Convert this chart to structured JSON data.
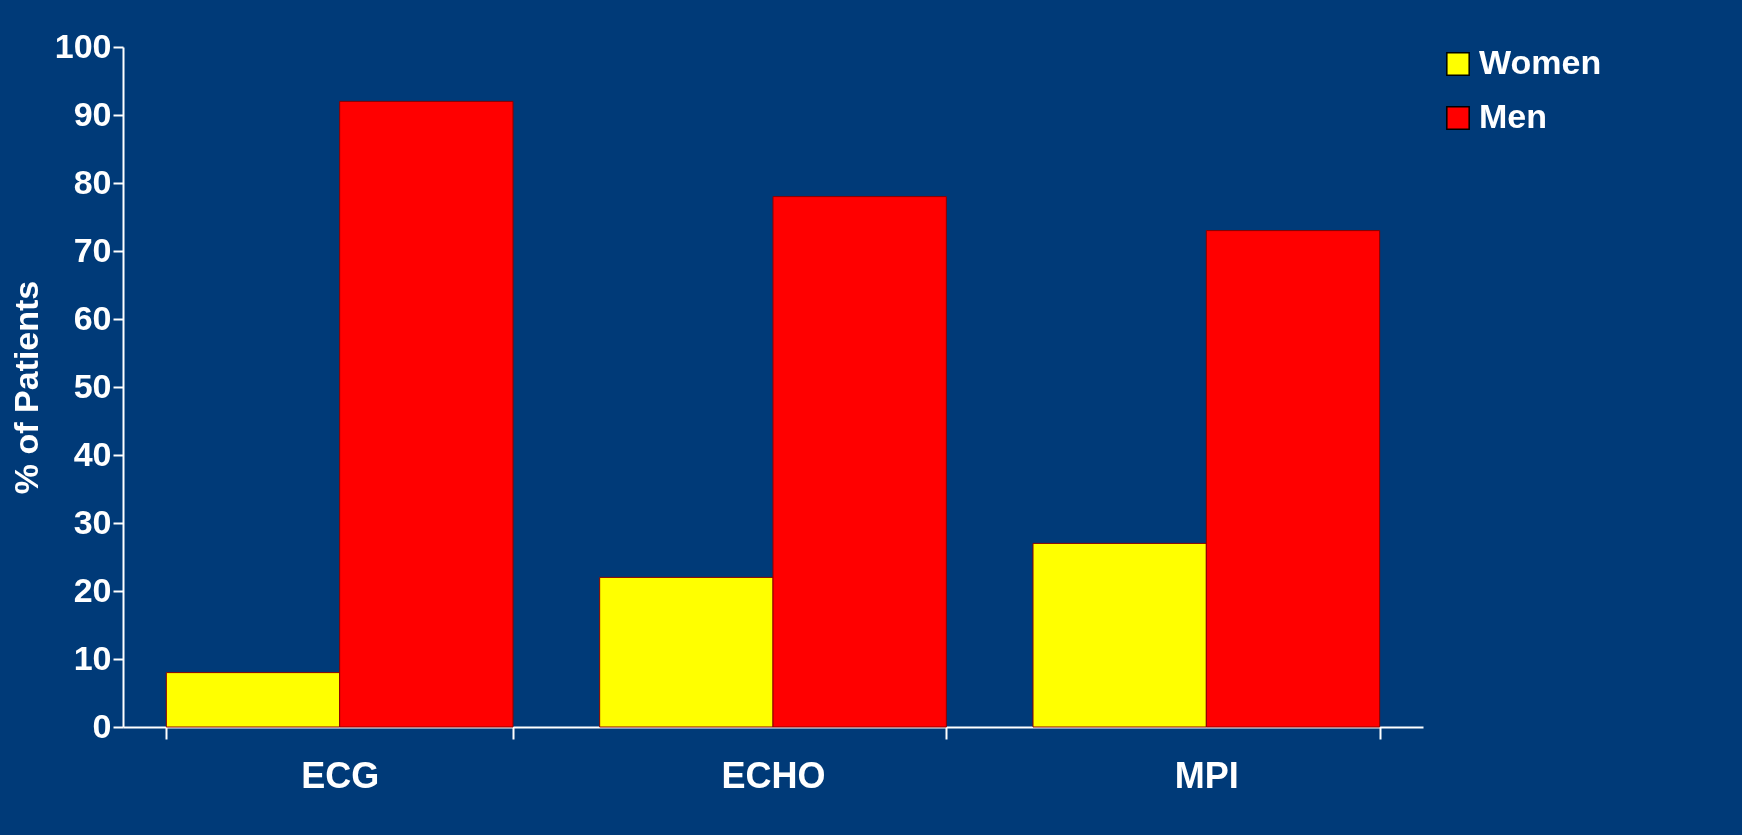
{
  "chart_data": {
    "type": "bar",
    "ylabel": "% of Patients",
    "categories": [
      "ECG",
      "ECHO",
      "MPI"
    ],
    "series": [
      {
        "name": "Women",
        "color": "#ffff00",
        "values": [
          8,
          22,
          27
        ]
      },
      {
        "name": "Men",
        "color": "#ff0000",
        "values": [
          92,
          78,
          73
        ]
      }
    ],
    "ylim": [
      0,
      100
    ],
    "yticks": [
      0,
      10,
      20,
      30,
      40,
      50,
      60,
      70,
      80,
      90,
      100
    ],
    "grid": false,
    "legend": "right"
  }
}
